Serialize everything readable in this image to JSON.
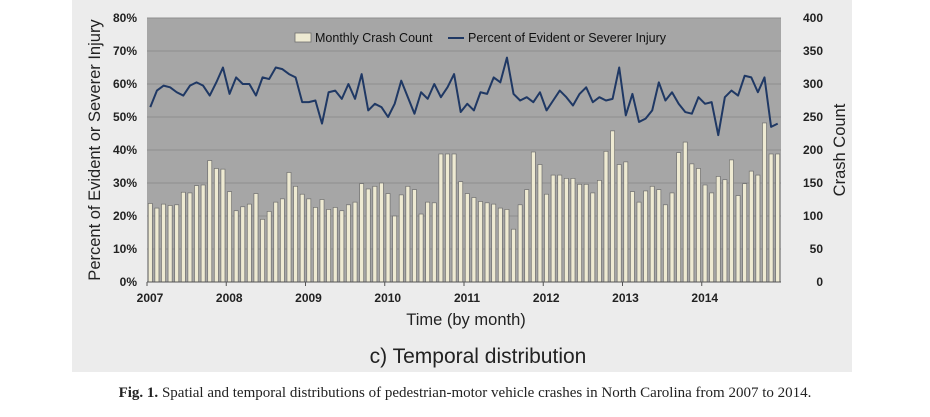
{
  "chart_data": {
    "type": "bar+line",
    "title": "",
    "subtitle": "c) Temporal distribution",
    "xlabel": "Time (by month)",
    "ylabel_left": "Percent of Evident or Severer Injury",
    "ylabel_right": "Crash Count",
    "ylim_left": [
      0,
      80
    ],
    "ylim_right": [
      0,
      400
    ],
    "left_ticks": [
      "0%",
      "10%",
      "20%",
      "30%",
      "40%",
      "50%",
      "60%",
      "70%",
      "80%"
    ],
    "right_ticks": [
      "0",
      "50",
      "100",
      "150",
      "200",
      "250",
      "300",
      "350",
      "400"
    ],
    "x_ticks": [
      "2007",
      "2008",
      "2009",
      "2010",
      "2011",
      "2012",
      "2013",
      "2014"
    ],
    "legend": {
      "position": "top",
      "bar_label": "Monthly Crash Count",
      "line_label": "Percent of Evident or Severer Injury"
    },
    "grid": true,
    "colors": {
      "plot_bg": "#a6a6a6",
      "bar_fill": "#eeead2",
      "bar_stroke": "#6f6f6f",
      "line": "#1f3864",
      "frame_bg": "#e9e9e9"
    },
    "series": [
      {
        "name": "Monthly Crash Count",
        "type": "bar",
        "axis": "right",
        "values": [
          119,
          112,
          118,
          116,
          117,
          136,
          135,
          146,
          147,
          184,
          172,
          171,
          137,
          108,
          114,
          118,
          134,
          95,
          107,
          121,
          126,
          166,
          145,
          133,
          126,
          113,
          125,
          110,
          113,
          108,
          117,
          121,
          149,
          141,
          145,
          150,
          134,
          100,
          132,
          145,
          140,
          103,
          121,
          120,
          194,
          194,
          194,
          152,
          134,
          128,
          122,
          120,
          118,
          112,
          110,
          80,
          117,
          140,
          197,
          178,
          133,
          162,
          162,
          157,
          157,
          148,
          148,
          135,
          154,
          198,
          229,
          178,
          182,
          137,
          121,
          138,
          145,
          140,
          117,
          135,
          196,
          212,
          179,
          172,
          147,
          135,
          160,
          155,
          185,
          131,
          149,
          168,
          162,
          241,
          194,
          194
        ]
      },
      {
        "name": "Percent of Evident or Severer Injury",
        "type": "line",
        "axis": "left",
        "values": [
          53,
          58,
          59.5,
          59,
          57.5,
          56.5,
          59.5,
          60.5,
          59.5,
          56.5,
          60.5,
          65,
          57,
          62,
          60,
          60,
          56.5,
          62,
          61.5,
          65,
          64.5,
          63,
          62,
          54.5,
          54.5,
          55,
          48,
          57.5,
          58,
          55.5,
          60,
          55.5,
          63,
          52,
          54,
          53,
          50,
          54,
          61,
          56,
          51,
          57.5,
          55.5,
          60,
          56,
          59,
          63,
          51.5,
          54,
          52,
          57.5,
          57,
          62,
          60.5,
          68,
          57,
          55,
          56,
          54.5,
          57.5,
          52,
          55,
          58,
          56,
          53.5,
          57,
          59,
          54.5,
          56,
          55,
          55.5,
          65,
          50.5,
          57,
          48.5,
          49.5,
          52,
          60.5,
          55,
          57.5,
          54,
          51.5,
          51,
          56,
          54,
          54.5,
          44.5,
          56,
          58,
          56.5,
          62.5,
          62,
          57.5,
          62,
          47,
          48
        ]
      }
    ]
  },
  "caption": {
    "label": "Fig. 1.",
    "text": "Spatial and temporal distributions of pedestrian-motor vehicle crashes in North Carolina from 2007 to 2014."
  }
}
